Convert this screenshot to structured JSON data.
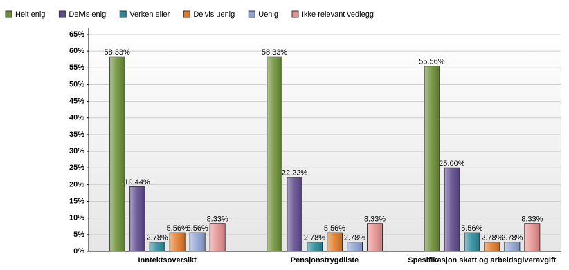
{
  "chart_data": {
    "type": "bar",
    "categories": [
      "Inntektsoversikt",
      "Pensjonstrygdliste",
      "Spesifikasjon skatt og arbeidsgiveravgift"
    ],
    "series": [
      {
        "name": "Helt enig",
        "color": "#6b8e35",
        "values": [
          58.33,
          58.33,
          55.56
        ],
        "value_labels": [
          "58.33%",
          "58.33%",
          "55.56%"
        ]
      },
      {
        "name": "Delvis enig",
        "color": "#5e4a8c",
        "values": [
          19.44,
          22.22,
          25.0
        ],
        "value_labels": [
          "19.44%",
          "22.22%",
          "25.00%"
        ]
      },
      {
        "name": "Verken eller",
        "color": "#2b8a9b",
        "values": [
          2.78,
          2.78,
          5.56
        ],
        "value_labels": [
          "2.78%",
          "2.78%",
          "5.56%"
        ]
      },
      {
        "name": "Delvis uenig",
        "color": "#e07a26",
        "values": [
          5.56,
          5.56,
          2.78
        ],
        "value_labels": [
          "5.56%",
          "5.56%",
          "2.78%"
        ]
      },
      {
        "name": "Uenig",
        "color": "#8da2d2",
        "values": [
          5.56,
          2.78,
          2.78
        ],
        "value_labels": [
          "5.56%",
          "2.78%",
          "2.78%"
        ]
      },
      {
        "name": "Ikke relevant vedlegg",
        "color": "#e5908f",
        "values": [
          8.33,
          8.33,
          8.33
        ],
        "value_labels": [
          "8.33%",
          "8.33%",
          "8.33%"
        ]
      }
    ],
    "ylim": [
      0,
      65
    ],
    "yticks": [
      {
        "value": 0,
        "label": "0%"
      },
      {
        "value": 5,
        "label": "5%"
      },
      {
        "value": 10,
        "label": "10%"
      },
      {
        "value": 15,
        "label": "15%"
      },
      {
        "value": 20,
        "label": "20%"
      },
      {
        "value": 25,
        "label": "25%"
      },
      {
        "value": 30,
        "label": "30%"
      },
      {
        "value": 35,
        "label": "35%"
      },
      {
        "value": 40,
        "label": "40%"
      },
      {
        "value": 45,
        "label": "45%"
      },
      {
        "value": 50,
        "label": "50%"
      },
      {
        "value": 55,
        "label": "55%"
      },
      {
        "value": 60,
        "label": "60%"
      },
      {
        "value": 65,
        "label": "65%"
      }
    ],
    "grid": true
  }
}
